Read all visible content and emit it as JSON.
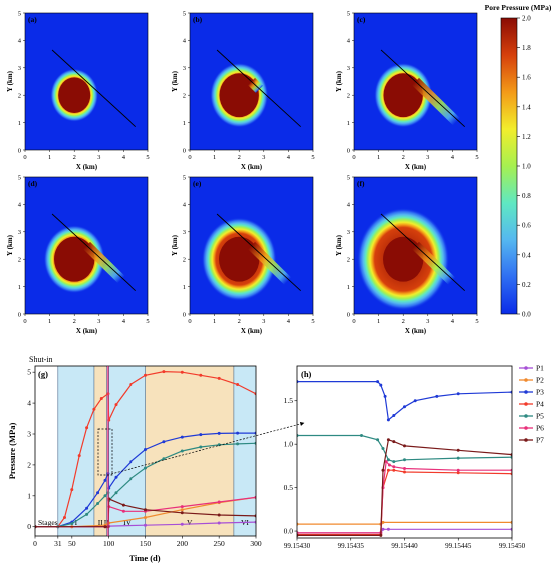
{
  "colors": {
    "low": "#0a2be8",
    "rings": [
      "#0a2be8",
      "#2f6ef2",
      "#55b7f0",
      "#5fe8c2",
      "#a6f050",
      "#f2ee2c",
      "#f39a18",
      "#d6400c",
      "#8a0c04"
    ],
    "stage_light_blue": "#c8e8f6",
    "stage_tan": "#f7e2bc",
    "stage_pink": "#f6b8d2",
    "p1": "#a64fd6",
    "p2": "#f08a2e",
    "p3": "#1f3ad6",
    "p4": "#f23b2b",
    "p5": "#2e8a82",
    "p6": "#e8307a",
    "p7": "#7a1a1a"
  },
  "colorbar": {
    "title": "Pore Pressure (MPa)",
    "ticks": [
      "0.0",
      "0.2",
      "0.4",
      "0.6",
      "0.8",
      "1.0",
      "1.2",
      "1.4",
      "1.6",
      "1.8",
      "2.0"
    ]
  },
  "maps": {
    "xlabel": "X (km)",
    "ylabel": "Y (km)",
    "ticks": [
      "0",
      "1",
      "2",
      "3",
      "4",
      "5"
    ],
    "panels": [
      {
        "label": "(a)",
        "injection_radius_km": 0.65,
        "halo_km": 0.32,
        "fault_front_km": 0.0
      },
      {
        "label": "(b)",
        "injection_radius_km": 0.8,
        "halo_km": 0.38,
        "fault_front_km": 0.5
      },
      {
        "label": "(c)",
        "injection_radius_km": 0.8,
        "halo_km": 0.38,
        "fault_front_km": 2.6
      },
      {
        "label": "(d)",
        "injection_radius_km": 0.82,
        "halo_km": 0.42,
        "fault_front_km": 2.2
      },
      {
        "label": "(e)",
        "injection_radius_km": 0.82,
        "halo_km": 0.7,
        "fault_front_km": 2.3
      },
      {
        "label": "(f)",
        "injection_radius_km": 0.82,
        "halo_km": 1.05,
        "fault_front_km": 2.3
      }
    ]
  },
  "chart_data": [
    {
      "type": "line",
      "label": "(g)",
      "annotation": "Shut-in",
      "xlabel": "Time (d)",
      "ylabel": "Pressure (MPa)",
      "xlim": [
        0,
        300
      ],
      "ylim": [
        -0.3,
        5.2
      ],
      "xticks": [
        "0",
        "31",
        "50",
        "100",
        "150",
        "200",
        "250",
        "300"
      ],
      "yticks": [
        "0",
        "1",
        "2",
        "3",
        "4",
        "5"
      ],
      "stages_label": "Stages",
      "stages": [
        {
          "name": "I",
          "from": 31,
          "to": 80,
          "color": "stage_light_blue"
        },
        {
          "name": "II",
          "from": 80,
          "to": 97,
          "color": "stage_tan"
        },
        {
          "name": "III",
          "from": 97,
          "to": 100,
          "color": "stage_pink"
        },
        {
          "name": "IV",
          "from": 100,
          "to": 150,
          "color": "stage_light_blue"
        },
        {
          "name": "V",
          "from": 150,
          "to": 270,
          "color": "stage_tan"
        },
        {
          "name": "VI",
          "from": 270,
          "to": 300,
          "color": "stage_light_blue"
        }
      ],
      "series": [
        {
          "name": "P1",
          "color": "p1",
          "x": [
            0,
            50,
            99,
            100,
            150,
            200,
            250,
            300
          ],
          "y": [
            0,
            0,
            0,
            0.02,
            0.05,
            0.08,
            0.12,
            0.15
          ]
        },
        {
          "name": "P2",
          "color": "p2",
          "x": [
            0,
            50,
            95,
            99,
            100,
            150,
            200,
            250,
            300
          ],
          "y": [
            0,
            0,
            0.05,
            0.1,
            0.12,
            0.3,
            0.55,
            0.78,
            0.95
          ]
        },
        {
          "name": "P3",
          "color": "p3",
          "x": [
            0,
            31,
            50,
            70,
            85,
            95,
            99,
            100,
            110,
            130,
            150,
            175,
            200,
            225,
            250,
            275,
            300
          ],
          "y": [
            0,
            0,
            0.15,
            0.6,
            1.1,
            1.5,
            1.72,
            1.25,
            1.6,
            2.1,
            2.5,
            2.75,
            2.9,
            2.98,
            3.02,
            3.03,
            3.03
          ]
        },
        {
          "name": "P4",
          "color": "p4",
          "x": [
            0,
            31,
            40,
            50,
            60,
            70,
            80,
            90,
            99,
            100,
            110,
            130,
            150,
            175,
            200,
            225,
            250,
            275,
            300
          ],
          "y": [
            0,
            0,
            0.3,
            1.2,
            2.3,
            3.2,
            3.8,
            4.15,
            4.3,
            3.45,
            3.95,
            4.6,
            4.9,
            5.02,
            5.0,
            4.9,
            4.8,
            4.6,
            4.3
          ]
        },
        {
          "name": "P5",
          "color": "p5",
          "x": [
            0,
            31,
            50,
            70,
            85,
            95,
            99,
            100,
            110,
            130,
            150,
            175,
            200,
            225,
            250,
            275,
            300
          ],
          "y": [
            0,
            0,
            0.1,
            0.4,
            0.75,
            1.0,
            1.1,
            0.85,
            1.1,
            1.55,
            1.9,
            2.2,
            2.45,
            2.58,
            2.65,
            2.68,
            2.7
          ]
        },
        {
          "name": "P6",
          "color": "p6",
          "x": [
            0,
            95,
            99,
            100,
            120,
            150,
            200,
            250,
            300
          ],
          "y": [
            0,
            0,
            0,
            0.65,
            0.5,
            0.5,
            0.65,
            0.8,
            0.95
          ]
        },
        {
          "name": "P7",
          "color": "p7",
          "x": [
            0,
            95,
            99,
            100,
            120,
            150,
            200,
            250,
            300
          ],
          "y": [
            0,
            0,
            0,
            0.9,
            0.7,
            0.55,
            0.45,
            0.38,
            0.35
          ]
        }
      ]
    },
    {
      "type": "line",
      "label": "(h)",
      "xlabel": "Time (d)",
      "xlim": [
        99.1543,
        99.1545
      ],
      "ylim": [
        -0.08,
        1.9
      ],
      "xticks": [
        "99.15430",
        "99.15435",
        "99.15440",
        "99.15445",
        "99.15450"
      ],
      "yticks": [
        "0.0",
        "0.5",
        "1.0",
        "1.5"
      ],
      "series": [
        {
          "name": "P1",
          "color": "p1",
          "x": [
            99.1543,
            99.154378,
            99.15438,
            99.154385,
            99.1545
          ],
          "y": [
            -0.02,
            -0.02,
            0.02,
            0.02,
            0.02
          ]
        },
        {
          "name": "P2",
          "color": "p2",
          "x": [
            99.1543,
            99.154378,
            99.15438,
            99.1545
          ],
          "y": [
            0.08,
            0.08,
            0.1,
            0.1
          ]
        },
        {
          "name": "P3",
          "color": "p3",
          "x": [
            99.1543,
            99.154375,
            99.154378,
            99.154382,
            99.154385,
            99.15439,
            99.1544,
            99.15441,
            99.15443,
            99.15445,
            99.1545
          ],
          "y": [
            1.72,
            1.72,
            1.68,
            1.55,
            1.28,
            1.33,
            1.43,
            1.5,
            1.55,
            1.58,
            1.6
          ]
        },
        {
          "name": "P4",
          "color": "p4",
          "x": [
            99.1543,
            99.154378,
            99.15438,
            99.154385,
            99.15439,
            99.1544,
            99.15445,
            99.1545
          ],
          "y": [
            -0.04,
            -0.04,
            0.5,
            0.7,
            0.7,
            0.68,
            0.67,
            0.66
          ]
        },
        {
          "name": "P5",
          "color": "p5",
          "x": [
            99.1543,
            99.15436,
            99.154375,
            99.15438,
            99.154385,
            99.15439,
            99.1544,
            99.15445,
            99.1545
          ],
          "y": [
            1.1,
            1.1,
            1.05,
            0.95,
            0.82,
            0.8,
            0.82,
            0.84,
            0.85
          ]
        },
        {
          "name": "P6",
          "color": "p6",
          "x": [
            99.1543,
            99.154378,
            99.15438,
            99.154383,
            99.154386,
            99.15439,
            99.1544,
            99.15445,
            99.1545
          ],
          "y": [
            -0.02,
            -0.02,
            0.5,
            0.8,
            0.76,
            0.74,
            0.72,
            0.7,
            0.7
          ]
        },
        {
          "name": "P7",
          "color": "p7",
          "x": [
            99.1543,
            99.154378,
            99.15438,
            99.154385,
            99.15439,
            99.1544,
            99.15445,
            99.1545
          ],
          "y": [
            -0.05,
            -0.05,
            0.7,
            1.05,
            1.03,
            0.98,
            0.93,
            0.88
          ]
        }
      ]
    }
  ]
}
